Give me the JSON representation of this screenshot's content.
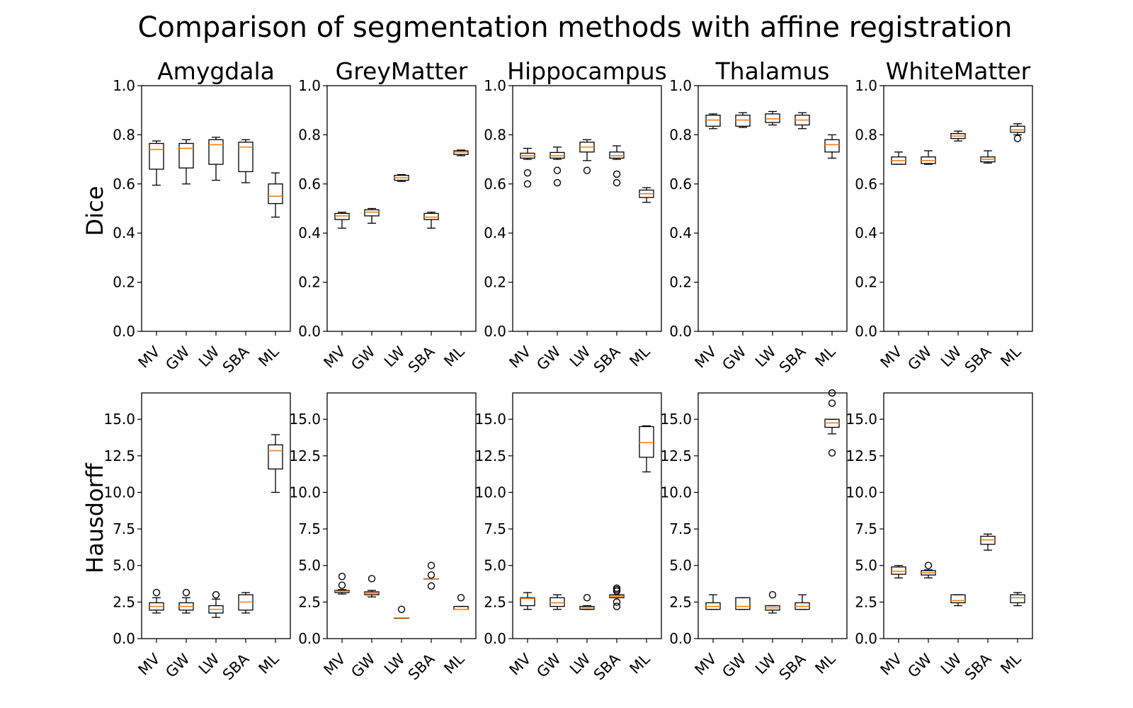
{
  "chart_data": {
    "type": "box",
    "title": "Comparison of segmentation methods with affine registration",
    "categories": [
      "MV",
      "GW",
      "LW",
      "SBA",
      "ML"
    ],
    "panels": [
      "Amygdala",
      "GreyMatter",
      "Hippocampus",
      "Thalamus",
      "WhiteMatter"
    ],
    "rows": [
      {
        "metric": "Dice",
        "ylim": [
          0,
          1.0
        ],
        "ticks": [
          "0.0",
          "0.2",
          "0.4",
          "0.6",
          "0.8",
          "1.0"
        ],
        "tick_values": [
          0,
          0.2,
          0.4,
          0.6,
          0.8,
          1.0
        ],
        "data": {
          "Amygdala": [
            {
              "whislo": 0.595,
              "q1": 0.66,
              "med": 0.74,
              "q3": 0.765,
              "whishi": 0.775,
              "fliers": []
            },
            {
              "whislo": 0.6,
              "q1": 0.665,
              "med": 0.745,
              "q3": 0.765,
              "whishi": 0.78,
              "fliers": []
            },
            {
              "whislo": 0.615,
              "q1": 0.68,
              "med": 0.76,
              "q3": 0.78,
              "whishi": 0.79,
              "fliers": []
            },
            {
              "whislo": 0.605,
              "q1": 0.65,
              "med": 0.75,
              "q3": 0.77,
              "whishi": 0.78,
              "fliers": []
            },
            {
              "whislo": 0.465,
              "q1": 0.52,
              "med": 0.55,
              "q3": 0.6,
              "whishi": 0.645,
              "fliers": []
            }
          ],
          "GreyMatter": [
            {
              "whislo": 0.42,
              "q1": 0.455,
              "med": 0.47,
              "q3": 0.48,
              "whishi": 0.485,
              "fliers": []
            },
            {
              "whislo": 0.44,
              "q1": 0.47,
              "med": 0.485,
              "q3": 0.495,
              "whishi": 0.5,
              "fliers": []
            },
            {
              "whislo": 0.61,
              "q1": 0.615,
              "med": 0.625,
              "q3": 0.635,
              "whishi": 0.638,
              "fliers": []
            },
            {
              "whislo": 0.42,
              "q1": 0.455,
              "med": 0.465,
              "q3": 0.48,
              "whishi": 0.485,
              "fliers": []
            },
            {
              "whislo": 0.715,
              "q1": 0.72,
              "med": 0.73,
              "q3": 0.735,
              "whishi": 0.738,
              "fliers": []
            }
          ],
          "Hippocampus": [
            {
              "whislo": 0.7,
              "q1": 0.705,
              "med": 0.715,
              "q3": 0.725,
              "whishi": 0.745,
              "fliers": [
                0.645,
                0.6
              ]
            },
            {
              "whislo": 0.7,
              "q1": 0.705,
              "med": 0.715,
              "q3": 0.728,
              "whishi": 0.75,
              "fliers": [
                0.655,
                0.605
              ]
            },
            {
              "whislo": 0.695,
              "q1": 0.73,
              "med": 0.75,
              "q3": 0.77,
              "whishi": 0.78,
              "fliers": [
                0.655
              ]
            },
            {
              "whislo": 0.7,
              "q1": 0.705,
              "med": 0.715,
              "q3": 0.73,
              "whishi": 0.755,
              "fliers": [
                0.64,
                0.605
              ]
            },
            {
              "whislo": 0.525,
              "q1": 0.545,
              "med": 0.56,
              "q3": 0.575,
              "whishi": 0.585,
              "fliers": []
            }
          ],
          "Thalamus": [
            {
              "whislo": 0.825,
              "q1": 0.835,
              "med": 0.86,
              "q3": 0.88,
              "whishi": 0.885,
              "fliers": []
            },
            {
              "whislo": 0.83,
              "q1": 0.835,
              "med": 0.86,
              "q3": 0.88,
              "whishi": 0.89,
              "fliers": []
            },
            {
              "whislo": 0.84,
              "q1": 0.85,
              "med": 0.865,
              "q3": 0.885,
              "whishi": 0.895,
              "fliers": []
            },
            {
              "whislo": 0.825,
              "q1": 0.84,
              "med": 0.86,
              "q3": 0.88,
              "whishi": 0.89,
              "fliers": []
            },
            {
              "whislo": 0.705,
              "q1": 0.73,
              "med": 0.76,
              "q3": 0.78,
              "whishi": 0.8,
              "fliers": []
            }
          ],
          "WhiteMatter": [
            {
              "whislo": 0.68,
              "q1": 0.68,
              "med": 0.695,
              "q3": 0.71,
              "whishi": 0.73,
              "fliers": []
            },
            {
              "whislo": 0.68,
              "q1": 0.683,
              "med": 0.695,
              "q3": 0.71,
              "whishi": 0.735,
              "fliers": []
            },
            {
              "whislo": 0.775,
              "q1": 0.785,
              "med": 0.795,
              "q3": 0.805,
              "whishi": 0.815,
              "fliers": []
            },
            {
              "whislo": 0.685,
              "q1": 0.69,
              "med": 0.7,
              "q3": 0.71,
              "whishi": 0.735,
              "fliers": []
            },
            {
              "whislo": 0.8,
              "q1": 0.81,
              "med": 0.82,
              "q3": 0.835,
              "whishi": 0.845,
              "fliers": [
                0.785
              ]
            }
          ]
        }
      },
      {
        "metric": "Hausdorff",
        "ylim": [
          0,
          16.8
        ],
        "ticks": [
          "0.0",
          "2.5",
          "5.0",
          "7.5",
          "10.0",
          "12.5",
          "15.0"
        ],
        "tick_values": [
          0,
          2.5,
          5.0,
          7.5,
          10.0,
          12.5,
          15.0
        ],
        "data": {
          "Amygdala": [
            {
              "whislo": 1.75,
              "q1": 1.95,
              "med": 2.2,
              "q3": 2.45,
              "whishi": 2.8,
              "fliers": [
                3.15
              ]
            },
            {
              "whislo": 1.75,
              "q1": 1.95,
              "med": 2.2,
              "q3": 2.45,
              "whishi": 2.8,
              "fliers": [
                3.15
              ]
            },
            {
              "whislo": 1.45,
              "q1": 1.75,
              "med": 2.0,
              "q3": 2.25,
              "whishi": 2.7,
              "fliers": [
                3.0
              ]
            },
            {
              "whislo": 1.75,
              "q1": 1.95,
              "med": 2.5,
              "q3": 3.0,
              "whishi": 3.15,
              "fliers": []
            },
            {
              "whislo": 10.0,
              "q1": 11.6,
              "med": 12.85,
              "q3": 13.25,
              "whishi": 13.95,
              "fliers": []
            }
          ],
          "GreyMatter": [
            {
              "whislo": 3.05,
              "q1": 3.15,
              "med": 3.25,
              "q3": 3.3,
              "whishi": 3.35,
              "fliers": [
                3.65,
                4.25
              ]
            },
            {
              "whislo": 2.85,
              "q1": 3.0,
              "med": 3.1,
              "q3": 3.2,
              "whishi": 3.3,
              "fliers": [
                4.1
              ]
            },
            {
              "whislo": 1.41,
              "q1": 1.41,
              "med": 1.41,
              "q3": 1.41,
              "whishi": 1.41,
              "fliers": [
                2.0
              ]
            },
            {
              "whislo": 4.1,
              "q1": 4.1,
              "med": 4.1,
              "q3": 4.1,
              "whishi": 4.1,
              "fliers": [
                3.6,
                4.35,
                5.0
              ]
            },
            {
              "whislo": 2.0,
              "q1": 2.0,
              "med": 2.0,
              "q3": 2.2,
              "whishi": 2.2,
              "fliers": [
                2.8
              ]
            }
          ],
          "Hippocampus": [
            {
              "whislo": 2.0,
              "q1": 2.25,
              "med": 2.75,
              "q3": 2.8,
              "whishi": 3.15,
              "fliers": []
            },
            {
              "whislo": 2.0,
              "q1": 2.2,
              "med": 2.45,
              "q3": 2.8,
              "whishi": 3.0,
              "fliers": []
            },
            {
              "whislo": 2.0,
              "q1": 2.0,
              "med": 2.1,
              "q3": 2.2,
              "whishi": 2.25,
              "fliers": [
                2.8
              ]
            },
            {
              "whislo": 2.8,
              "q1": 2.8,
              "med": 2.9,
              "q3": 3.0,
              "whishi": 3.0,
              "fliers": [
                2.2,
                2.5,
                3.25,
                3.35,
                3.45
              ]
            },
            {
              "whislo": 11.4,
              "q1": 12.4,
              "med": 13.4,
              "q3": 14.5,
              "whishi": 14.55,
              "fliers": []
            }
          ],
          "Thalamus": [
            {
              "whislo": 2.0,
              "q1": 2.0,
              "med": 2.2,
              "q3": 2.45,
              "whishi": 3.0,
              "fliers": []
            },
            {
              "whislo": 2.0,
              "q1": 2.0,
              "med": 2.2,
              "q3": 2.8,
              "whishi": 2.8,
              "fliers": []
            },
            {
              "whislo": 1.75,
              "q1": 1.95,
              "med": 2.1,
              "q3": 2.25,
              "whishi": 2.25,
              "fliers": [
                3.0
              ]
            },
            {
              "whislo": 2.0,
              "q1": 2.0,
              "med": 2.2,
              "q3": 2.45,
              "whishi": 3.0,
              "fliers": []
            },
            {
              "whislo": 14.0,
              "q1": 14.45,
              "med": 14.75,
              "q3": 15.0,
              "whishi": 15.0,
              "fliers": [
                12.7,
                16.1,
                16.8
              ]
            }
          ],
          "WhiteMatter": [
            {
              "whislo": 4.15,
              "q1": 4.4,
              "med": 4.6,
              "q3": 4.9,
              "whishi": 5.0,
              "fliers": []
            },
            {
              "whislo": 4.15,
              "q1": 4.35,
              "med": 4.5,
              "q3": 4.65,
              "whishi": 4.7,
              "fliers": [
                5.0
              ]
            },
            {
              "whislo": 2.25,
              "q1": 2.45,
              "med": 2.6,
              "q3": 3.0,
              "whishi": 3.0,
              "fliers": []
            },
            {
              "whislo": 6.05,
              "q1": 6.45,
              "med": 6.75,
              "q3": 7.0,
              "whishi": 7.15,
              "fliers": []
            },
            {
              "whislo": 2.25,
              "q1": 2.45,
              "med": 2.8,
              "q3": 3.0,
              "whishi": 3.15,
              "fliers": []
            }
          ]
        }
      }
    ],
    "colors": {
      "box": "#000000",
      "median": "#ff7f0e"
    },
    "grid": false
  }
}
